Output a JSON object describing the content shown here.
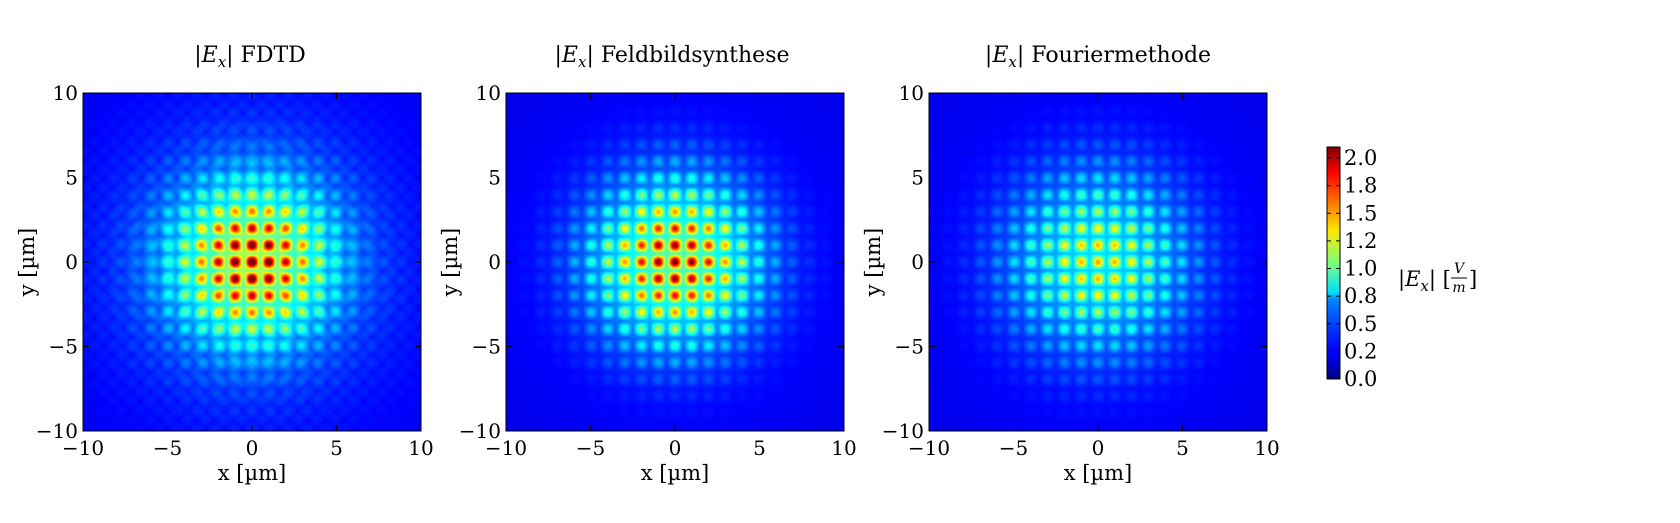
{
  "chart_data": [
    {
      "type": "heatmap",
      "title_prefix": "|",
      "title_var": "E",
      "title_sub": "x",
      "title_rest": "| FDTD",
      "xlabel": "x [µm]",
      "ylabel": "y [µm]",
      "xlim": [
        -10,
        10
      ],
      "ylim": [
        -10,
        10
      ],
      "xticks": [
        "−10",
        "−5",
        "0",
        "5",
        "10"
      ],
      "yticks": [
        "10",
        "5",
        "0",
        "−5",
        "−10"
      ],
      "field": {
        "peak": 2.1,
        "envelope_sigma_um": 3.2,
        "lattice_spacing_um": 1.0,
        "background": 0.15,
        "diagonal_fringes": true
      }
    },
    {
      "type": "heatmap",
      "title_prefix": "|",
      "title_var": "E",
      "title_sub": "x",
      "title_rest": "| Feldbildsynthese",
      "xlabel": "x [µm]",
      "ylabel": "y [µm]",
      "xlim": [
        -10,
        10
      ],
      "ylim": [
        -10,
        10
      ],
      "xticks": [
        "−10",
        "−5",
        "0",
        "5",
        "10"
      ],
      "yticks": [
        "10",
        "5",
        "0",
        "−5",
        "−10"
      ],
      "field": {
        "peak": 2.1,
        "envelope_sigma_um": 3.3,
        "lattice_spacing_um": 1.0,
        "background": 0.1,
        "diagonal_fringes": false
      }
    },
    {
      "type": "heatmap",
      "title_prefix": "|",
      "title_var": "E",
      "title_sub": "x",
      "title_rest": "| Fouriermethode",
      "xlabel": "x [µm]",
      "ylabel": "y [µm]",
      "xlim": [
        -10,
        10
      ],
      "ylim": [
        -10,
        10
      ],
      "xticks": [
        "−10",
        "−5",
        "0",
        "5",
        "10"
      ],
      "yticks": [
        "10",
        "5",
        "0",
        "−5",
        "−10"
      ],
      "field": {
        "peak": 1.4,
        "envelope_sigma_um": 3.6,
        "lattice_spacing_um": 1.0,
        "background": 0.08,
        "diagonal_fringes": false
      }
    }
  ],
  "colorbar": {
    "colormap": "jet",
    "range": [
      0.0,
      2.1
    ],
    "ticks": [
      "2.0",
      "1.8",
      "1.5",
      "1.2",
      "1.0",
      "0.8",
      "0.5",
      "0.2",
      "0.0"
    ],
    "tick_values": [
      2.0,
      1.75,
      1.5,
      1.25,
      1.0,
      0.75,
      0.5,
      0.25,
      0.0
    ],
    "label_prefix": "|",
    "label_var": "E",
    "label_sub": "x",
    "label_mid": "| [",
    "label_num": "V",
    "label_den": "m",
    "label_end": "]"
  }
}
